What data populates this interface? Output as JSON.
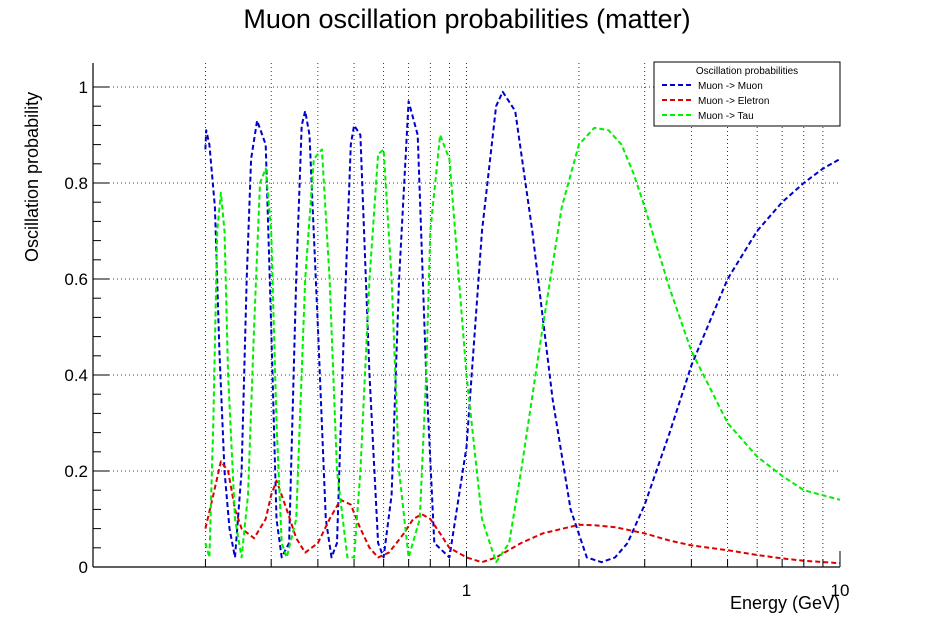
{
  "chart_data": {
    "type": "line",
    "title": "Muon oscillation probabilities (matter)",
    "xlabel": "Energy (GeV)",
    "ylabel": "Oscillation probability",
    "x_scale": "log",
    "xlim": [
      0.1,
      10
    ],
    "ylim": [
      0,
      1.05
    ],
    "x_ticks": [
      1,
      10
    ],
    "x_tick_labels": [
      "1",
      "10"
    ],
    "y_ticks": [
      0,
      0.2,
      0.4,
      0.6,
      0.8,
      1
    ],
    "y_tick_labels": [
      "0",
      "0.2",
      "0.4",
      "0.6",
      "0.8",
      "1"
    ],
    "grid": true,
    "legend": {
      "title": "Oscillation probabilities",
      "position": "top-right"
    },
    "series": [
      {
        "name": "Muon -> Muon",
        "color": "#0000cc",
        "dash": "dashed",
        "x": [
          0.2,
          0.201,
          0.205,
          0.212,
          0.218,
          0.225,
          0.232,
          0.24,
          0.25,
          0.258,
          0.265,
          0.275,
          0.29,
          0.3,
          0.31,
          0.32,
          0.335,
          0.35,
          0.362,
          0.37,
          0.38,
          0.4,
          0.42,
          0.435,
          0.45,
          0.47,
          0.49,
          0.5,
          0.52,
          0.55,
          0.58,
          0.6,
          0.63,
          0.66,
          0.7,
          0.74,
          0.78,
          0.82,
          0.9,
          1.0,
          1.1,
          1.2,
          1.25,
          1.35,
          1.5,
          1.7,
          1.9,
          2.1,
          2.3,
          2.5,
          2.7,
          3.0,
          3.5,
          4.0,
          5.0,
          6.0,
          7.0,
          8.0,
          9.0,
          10.0
        ],
        "y": [
          0.87,
          0.91,
          0.88,
          0.75,
          0.45,
          0.2,
          0.08,
          0.02,
          0.2,
          0.6,
          0.85,
          0.93,
          0.88,
          0.5,
          0.1,
          0.02,
          0.05,
          0.6,
          0.92,
          0.95,
          0.9,
          0.5,
          0.1,
          0.02,
          0.05,
          0.5,
          0.88,
          0.92,
          0.9,
          0.4,
          0.05,
          0.02,
          0.15,
          0.6,
          0.97,
          0.9,
          0.4,
          0.05,
          0.02,
          0.25,
          0.7,
          0.96,
          0.99,
          0.95,
          0.7,
          0.35,
          0.12,
          0.02,
          0.01,
          0.02,
          0.05,
          0.13,
          0.28,
          0.42,
          0.6,
          0.7,
          0.76,
          0.8,
          0.83,
          0.85
        ]
      },
      {
        "name": "Muon -> Eletron",
        "color": "#dd0000",
        "dash": "dashed",
        "x": [
          0.2,
          0.21,
          0.22,
          0.23,
          0.24,
          0.25,
          0.27,
          0.29,
          0.3,
          0.31,
          0.33,
          0.35,
          0.37,
          0.4,
          0.43,
          0.46,
          0.49,
          0.52,
          0.55,
          0.58,
          0.62,
          0.68,
          0.72,
          0.76,
          0.8,
          0.85,
          0.9,
          1.0,
          1.1,
          1.2,
          1.4,
          1.6,
          2.0,
          2.2,
          2.5,
          3.0,
          3.5,
          4.0,
          5.0,
          6.0,
          7.0,
          8.0,
          10.0
        ],
        "y": [
          0.08,
          0.15,
          0.22,
          0.2,
          0.12,
          0.08,
          0.06,
          0.1,
          0.15,
          0.18,
          0.12,
          0.06,
          0.03,
          0.05,
          0.1,
          0.14,
          0.13,
          0.08,
          0.04,
          0.02,
          0.03,
          0.07,
          0.1,
          0.11,
          0.1,
          0.07,
          0.04,
          0.02,
          0.01,
          0.02,
          0.05,
          0.07,
          0.088,
          0.087,
          0.083,
          0.07,
          0.055,
          0.045,
          0.035,
          0.025,
          0.018,
          0.013,
          0.008
        ]
      },
      {
        "name": "Muon -> Tau",
        "color": "#00ee00",
        "dash": "dashed",
        "x": [
          0.2,
          0.205,
          0.21,
          0.215,
          0.22,
          0.225,
          0.23,
          0.24,
          0.25,
          0.26,
          0.27,
          0.28,
          0.29,
          0.3,
          0.31,
          0.32,
          0.33,
          0.35,
          0.37,
          0.39,
          0.41,
          0.43,
          0.45,
          0.48,
          0.5,
          0.52,
          0.55,
          0.58,
          0.6,
          0.63,
          0.66,
          0.7,
          0.75,
          0.78,
          0.8,
          0.85,
          0.9,
          1.0,
          1.1,
          1.2,
          1.3,
          1.4,
          1.6,
          1.8,
          2.0,
          2.2,
          2.4,
          2.6,
          2.8,
          3.0,
          3.5,
          4.0,
          5.0,
          6.0,
          7.0,
          8.0,
          10.0
        ],
        "y": [
          0.05,
          0.02,
          0.3,
          0.7,
          0.78,
          0.7,
          0.4,
          0.1,
          0.02,
          0.15,
          0.5,
          0.8,
          0.83,
          0.7,
          0.3,
          0.05,
          0.02,
          0.1,
          0.6,
          0.85,
          0.87,
          0.6,
          0.2,
          0.02,
          0.02,
          0.2,
          0.6,
          0.86,
          0.87,
          0.6,
          0.2,
          0.02,
          0.1,
          0.4,
          0.7,
          0.9,
          0.85,
          0.4,
          0.1,
          0.01,
          0.05,
          0.2,
          0.5,
          0.75,
          0.88,
          0.915,
          0.91,
          0.88,
          0.82,
          0.75,
          0.58,
          0.45,
          0.3,
          0.23,
          0.19,
          0.16,
          0.14
        ]
      }
    ]
  }
}
